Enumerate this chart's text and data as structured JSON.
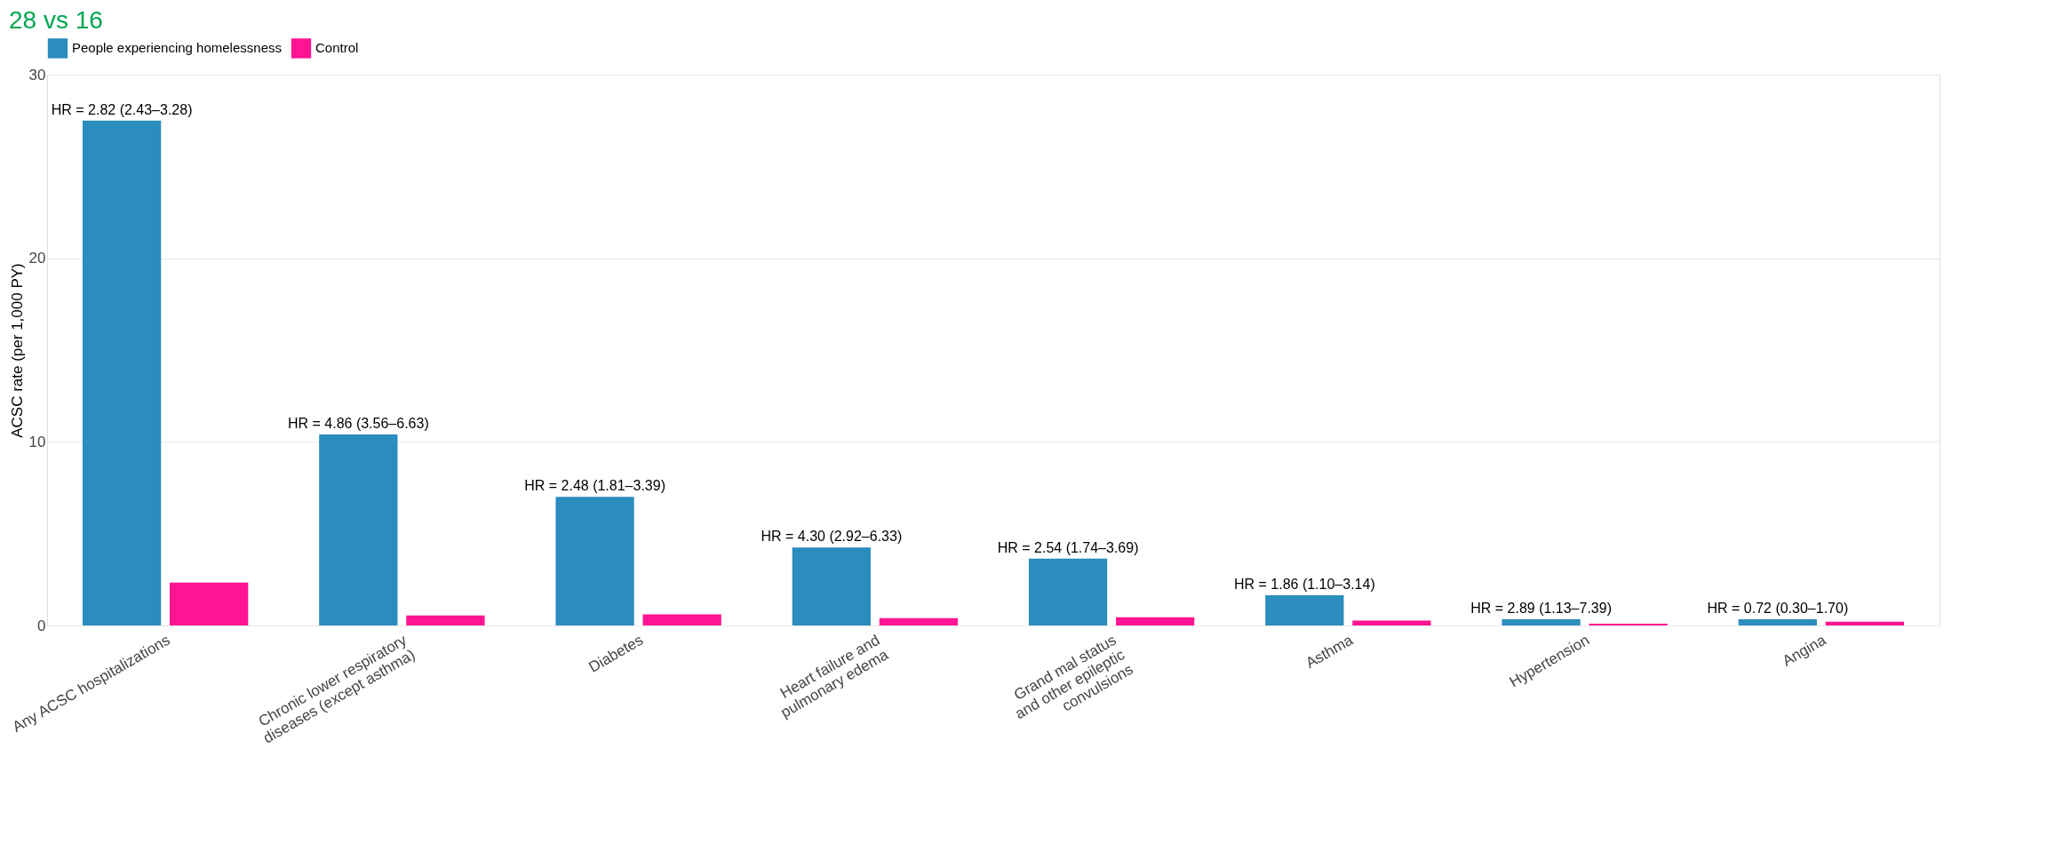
{
  "chart_data": {
    "type": "bar",
    "title": "28 vs 16",
    "ylabel": "ACSC rate (per 1,000 PY)",
    "categories": [
      "Any ACSC hospitalizations",
      "Chronic lower respiratory\ndiseases (except asthma)",
      "Diabetes",
      "Heart failure and\npulmonary edema",
      "Grand mal status\nand other epileptic\nconvulsions",
      "Asthma",
      "Hypertension",
      "Angina"
    ],
    "series": [
      {
        "name": "People experiencing homelessness",
        "color": "#2b8cbe",
        "values": [
          27.5,
          10.4,
          7.0,
          4.25,
          3.64,
          1.65,
          0.34,
          0.34
        ]
      },
      {
        "name": "Control",
        "color": "#ff1493",
        "values": [
          2.33,
          0.55,
          0.6,
          0.4,
          0.45,
          0.27,
          0.1,
          0.2
        ]
      }
    ],
    "annotations": [
      {
        "text": "HR = 2.82 (2.43–3.28)",
        "x": "Any ACSC hospitalizations",
        "y": 27.5
      },
      {
        "text": "HR = 4.86 (3.56–6.63)",
        "x": "Chronic lower respiratory\ndiseases (except asthma)",
        "y": 10.4
      },
      {
        "text": "HR = 2.48 (1.81–3.39)",
        "x": "Diabetes",
        "y": 7.0
      },
      {
        "text": "HR = 4.30 (2.92–6.33)",
        "x": "Heart failure and\npulmonary edema",
        "y": 4.25
      },
      {
        "text": "HR = 2.54 (1.74–3.69)",
        "x": "Grand mal status\nand other epileptic\nconvulsions",
        "y": 3.64
      },
      {
        "text": "HR = 1.86 (1.10–3.14)",
        "x": "Asthma",
        "y": 1.65
      },
      {
        "text": "HR = 2.89 (1.13–7.39)",
        "x": "Hypertension",
        "y": 0.34
      },
      {
        "text": "HR = 0.72 (0.30–1.70)",
        "x": "Angina",
        "y": 0.34
      }
    ],
    "ylim": [
      0,
      30
    ],
    "yticks": [
      0,
      10,
      20,
      30
    ],
    "grid": "y",
    "legend": "top"
  }
}
